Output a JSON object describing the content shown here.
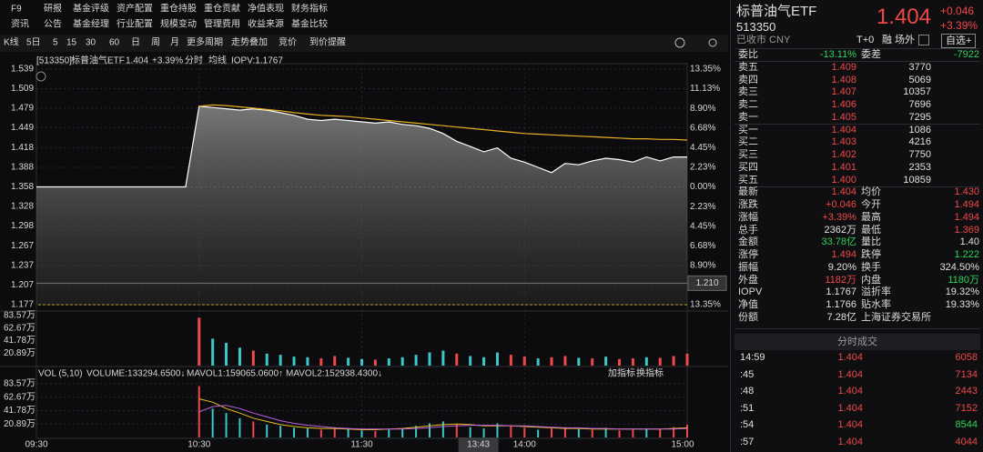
{
  "menu": {
    "row1": [
      "F9",
      "研报",
      "基金评级",
      "资产配置",
      "重仓持股",
      "重仓贡献",
      "净值表现",
      "财务指标"
    ],
    "row2": [
      "资讯",
      "公告",
      "基金经理",
      "行业配置",
      "规模变动",
      "管理费用",
      "收益来源",
      "基金比较"
    ]
  },
  "toolbar": [
    "K线",
    "5日",
    "5",
    "15",
    "30",
    "60",
    "日",
    "周",
    "月",
    "更多周期",
    "走势叠加",
    "竞价",
    "到价提醒"
  ],
  "chart_data": [
    {
      "type": "line",
      "code": "[513350]",
      "last": "1.404",
      "change": "+3.39%",
      "mode": "分时",
      "iopv": "IOPV:1.1767",
      "x": [
        0,
        5,
        10,
        15,
        20,
        25,
        30,
        35,
        40,
        45,
        50,
        55,
        60,
        65,
        70,
        75,
        80,
        85,
        90,
        95,
        100,
        105,
        110,
        115,
        120,
        125,
        130,
        135,
        140,
        145,
        150,
        155,
        160,
        165,
        170,
        175,
        180,
        185,
        190,
        195,
        200,
        205,
        210,
        215,
        220,
        225,
        230,
        235,
        240
      ],
      "xlim": [
        0,
        240
      ],
      "series": [
        {
          "name": "标普油气ETF",
          "color": "#ffffff",
          "values": [
            1.358,
            1.358,
            1.358,
            1.358,
            1.358,
            1.358,
            1.358,
            1.358,
            1.358,
            1.358,
            1.358,
            1.358,
            1.482,
            1.48,
            1.478,
            1.476,
            1.478,
            1.476,
            1.472,
            1.468,
            1.462,
            1.46,
            1.462,
            1.46,
            1.458,
            1.456,
            1.458,
            1.454,
            1.452,
            1.448,
            1.44,
            1.428,
            1.42,
            1.412,
            1.418,
            1.402,
            1.396,
            1.388,
            1.38,
            1.394,
            1.392,
            1.398,
            1.402,
            1.4,
            1.396,
            1.404,
            1.398,
            1.404,
            1.404
          ]
        },
        {
          "name": "均线",
          "color": "#e8b020",
          "values": [
            null,
            null,
            null,
            null,
            null,
            null,
            null,
            null,
            null,
            null,
            null,
            null,
            1.482,
            1.484,
            1.483,
            1.481,
            1.479,
            1.477,
            1.475,
            1.472,
            1.47,
            1.468,
            1.467,
            1.466,
            1.464,
            1.462,
            1.46,
            1.458,
            1.456,
            1.454,
            1.452,
            1.45,
            1.448,
            1.446,
            1.444,
            1.442,
            1.44,
            1.439,
            1.438,
            1.437,
            1.436,
            1.435,
            1.434,
            1.433,
            1.432,
            1.432,
            1.431,
            1.431,
            1.43
          ]
        }
      ],
      "ylim": [
        1.177,
        1.539
      ],
      "yticks": [
        1.539,
        1.509,
        1.479,
        1.449,
        1.418,
        1.388,
        1.358,
        1.328,
        1.298,
        1.267,
        1.237,
        1.207,
        1.177
      ],
      "y2lim": [
        -13.35,
        13.35
      ],
      "y2ticks": [
        {
          "value": 13.35,
          "label": "13.35%"
        },
        {
          "value": 11.13,
          "label": "11.13%"
        },
        {
          "value": 8.9,
          "label": "8.90%"
        },
        {
          "value": 6.68,
          "label": "6.68%"
        },
        {
          "value": 4.45,
          "label": "4.45%"
        },
        {
          "value": 2.23,
          "label": "2.23%"
        },
        {
          "value": 0,
          "label": "0.00%"
        },
        {
          "value": -2.23,
          "label": "2.23%"
        },
        {
          "value": -4.45,
          "label": "4.45%"
        },
        {
          "value": -6.68,
          "label": "6.68%"
        },
        {
          "value": -8.9,
          "label": "8.90%"
        },
        {
          "value": -11.13,
          "label": "11.13%"
        },
        {
          "value": -13.35,
          "label": "13.35%"
        }
      ],
      "crosshair": {
        "value": 1.21,
        "label": "1.210"
      },
      "grid": true
    },
    {
      "type": "bar",
      "x": [
        60,
        65,
        70,
        75,
        80,
        85,
        90,
        95,
        100,
        105,
        110,
        115,
        120,
        125,
        130,
        135,
        140,
        145,
        150,
        155,
        160,
        165,
        170,
        175,
        180,
        185,
        190,
        195,
        200,
        205,
        210,
        215,
        220,
        225,
        230,
        235,
        240
      ],
      "xlim": [
        0,
        240
      ],
      "values": [
        80,
        45,
        38,
        30,
        25,
        20,
        18,
        15,
        14,
        12,
        16,
        13,
        11,
        10,
        12,
        14,
        18,
        22,
        25,
        20,
        16,
        14,
        22,
        18,
        15,
        12,
        14,
        16,
        13,
        12,
        15,
        11,
        12,
        14,
        13,
        16,
        20
      ],
      "colors": [
        "#f04848",
        "#3cc8c8",
        "#3cc8c8",
        "#3cc8c8",
        "#f04848",
        "#3cc8c8",
        "#3cc8c8",
        "#3cc8c8",
        "#3cc8c8",
        "#f04848",
        "#f04848",
        "#3cc8c8",
        "#3cc8c8",
        "#f04848",
        "#3cc8c8",
        "#3cc8c8",
        "#3cc8c8",
        "#3cc8c8",
        "#3cc8c8",
        "#f04848",
        "#3cc8c8",
        "#3cc8c8",
        "#3cc8c8",
        "#f04848",
        "#f04848",
        "#3cc8c8",
        "#f04848",
        "#f04848",
        "#3cc8c8",
        "#f04848",
        "#3cc8c8",
        "#f04848",
        "#f04848",
        "#3cc8c8",
        "#f04848",
        "#f04848",
        "#f04848"
      ],
      "ylim": [
        0,
        83.57
      ],
      "yticks": [
        {
          "value": 83.57,
          "label": "83.57万"
        },
        {
          "value": 62.67,
          "label": "62.67万"
        },
        {
          "value": 41.78,
          "label": "41.78万"
        },
        {
          "value": 20.89,
          "label": "20.89万"
        }
      ]
    },
    {
      "type": "bar_line",
      "title": "VOL (5,10)",
      "bar_label": "VOLUME:133294.6500↓",
      "buttons": [
        "加指标",
        "换指标"
      ],
      "x": [
        60,
        65,
        70,
        75,
        80,
        85,
        90,
        95,
        100,
        105,
        110,
        115,
        120,
        125,
        130,
        135,
        140,
        145,
        150,
        155,
        160,
        165,
        170,
        175,
        180,
        185,
        190,
        195,
        200,
        205,
        210,
        215,
        220,
        225,
        230,
        235,
        240
      ],
      "xlim": [
        0,
        240
      ],
      "values": [
        80,
        45,
        38,
        30,
        25,
        20,
        18,
        15,
        14,
        12,
        16,
        13,
        11,
        10,
        12,
        14,
        18,
        22,
        25,
        20,
        16,
        14,
        22,
        18,
        15,
        12,
        14,
        16,
        13,
        12,
        15,
        11,
        12,
        14,
        13,
        16,
        20
      ],
      "colors": [
        "#f04848",
        "#3cc8c8",
        "#3cc8c8",
        "#3cc8c8",
        "#f04848",
        "#3cc8c8",
        "#3cc8c8",
        "#3cc8c8",
        "#3cc8c8",
        "#f04848",
        "#f04848",
        "#3cc8c8",
        "#3cc8c8",
        "#f04848",
        "#3cc8c8",
        "#3cc8c8",
        "#3cc8c8",
        "#3cc8c8",
        "#3cc8c8",
        "#f04848",
        "#3cc8c8",
        "#3cc8c8",
        "#3cc8c8",
        "#f04848",
        "#f04848",
        "#3cc8c8",
        "#f04848",
        "#f04848",
        "#3cc8c8",
        "#f04848",
        "#3cc8c8",
        "#f04848",
        "#f04848",
        "#3cc8c8",
        "#f04848",
        "#f04848",
        "#f04848"
      ],
      "series": [
        {
          "name": "MAVOL1:159065.0600↑",
          "color": "#e8c020",
          "values": [
            60,
            55,
            45,
            38,
            30,
            25,
            20,
            17,
            15,
            14,
            14,
            13,
            12,
            12,
            13,
            14,
            16,
            18,
            20,
            21,
            20,
            18,
            18,
            18,
            17,
            16,
            15,
            14,
            14,
            13,
            13,
            13,
            13,
            13,
            13,
            14,
            15
          ]
        },
        {
          "name": "MAVOL2:152938.4300↓",
          "color": "#c060e0",
          "values": [
            40,
            48,
            50,
            45,
            38,
            32,
            26,
            22,
            19,
            17,
            15,
            14,
            13,
            13,
            13,
            13,
            14,
            15,
            17,
            18,
            19,
            19,
            19,
            18,
            18,
            17,
            16,
            15,
            15,
            14,
            14,
            13,
            13,
            13,
            13,
            13,
            14
          ]
        }
      ],
      "ylim": [
        0,
        83.57
      ],
      "yticks": [
        {
          "value": 83.57,
          "label": "83.57万"
        },
        {
          "value": 62.67,
          "label": "62.67万"
        },
        {
          "value": 41.78,
          "label": "41.78万"
        },
        {
          "value": 20.89,
          "label": "20.89万"
        }
      ],
      "xticks": [
        {
          "value": 0,
          "label": "09:30"
        },
        {
          "value": 60,
          "label": "10:30"
        },
        {
          "value": 120,
          "label": "11:30"
        },
        {
          "value": 180,
          "label": "14:00"
        },
        {
          "value": 240,
          "label": "15:00"
        }
      ],
      "cursor": {
        "value": 163,
        "label": "13:43"
      }
    }
  ],
  "quote": {
    "name": "标普油气ETF",
    "code": "513350",
    "price": "1.404",
    "change": "+0.046",
    "change_pct": "+3.39%",
    "status": "已收市 CNY",
    "tags": [
      "T+0",
      "融",
      "场外",
      "自选+"
    ],
    "ratio": [
      "委比",
      "-13.11%",
      "委差",
      "-7922"
    ],
    "levels": [
      [
        "卖五",
        "1.409",
        "3770"
      ],
      [
        "卖四",
        "1.408",
        "5069"
      ],
      [
        "卖三",
        "1.407",
        "10357"
      ],
      [
        "卖二",
        "1.406",
        "7696"
      ],
      [
        "卖一",
        "1.405",
        "7295"
      ],
      [
        "买一",
        "1.404",
        "1086"
      ],
      [
        "买二",
        "1.403",
        "4216"
      ],
      [
        "买三",
        "1.402",
        "7750"
      ],
      [
        "买四",
        "1.401",
        "2353"
      ],
      [
        "买五",
        "1.400",
        "10859"
      ]
    ],
    "stats": [
      [
        "最新",
        "1.404",
        "均价",
        "1.430"
      ],
      [
        "涨跌",
        "+0.046",
        "今开",
        "1.494"
      ],
      [
        "涨幅",
        "+3.39%",
        "最高",
        "1.494"
      ],
      [
        "总手",
        "2362万",
        "最低",
        "1.369"
      ],
      [
        "金额",
        "33.78亿",
        "量比",
        "1.40"
      ],
      [
        "涨停",
        "1.494",
        "跌停",
        "1.222"
      ],
      [
        "振幅",
        "9.20%",
        "换手",
        "324.50%"
      ],
      [
        "外盘",
        "1182万",
        "内盘",
        "1180万"
      ],
      [
        "IOPV",
        "1.1767",
        "溢折率",
        "19.32%"
      ],
      [
        "净值",
        "1.1766",
        "贴水率",
        "19.33%"
      ],
      [
        "份额",
        "7.28亿",
        "上海证券交易所"
      ]
    ]
  },
  "trades": {
    "title": "分时成交",
    "rows": [
      [
        "14:59",
        "1.404",
        "6058"
      ],
      [
        ":45",
        "1.404",
        "7134"
      ],
      [
        ":48",
        "1.404",
        "2443"
      ],
      [
        ":51",
        "1.404",
        "7152"
      ],
      [
        ":54",
        "1.404",
        "8544"
      ],
      [
        ":57",
        "1.404",
        "4044"
      ]
    ]
  }
}
